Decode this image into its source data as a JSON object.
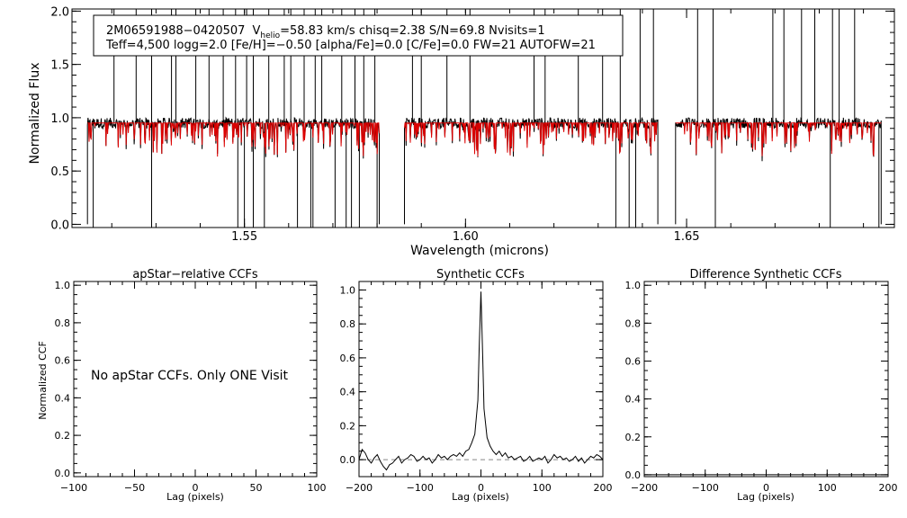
{
  "chart_data": [
    {
      "type": "line",
      "header": {
        "line1_id": "2M06591988−0420507",
        "line1_v": "V",
        "line1_v_sub": "helio",
        "line1_rest": "=58.83 km/s  chisq=2.38  S/N=69.8  Nvisits=1",
        "line2": "Teff=4,500 logg=2.0 [Fe/H]=−0.50 [alpha/Fe]=0.0 [C/Fe]=0.0 FW=21 AUTOFW=21"
      },
      "xlabel": "Wavelength (microns)",
      "ylabel": "Normalized Flux",
      "xlim": [
        1.511,
        1.697
      ],
      "ylim": [
        -0.03,
        2.02
      ],
      "xticks": [
        "1.55",
        "1.60",
        "1.65"
      ],
      "xtick_values": [
        1.55,
        1.6,
        1.65
      ],
      "yticks": [
        "0.0",
        "0.5",
        "1.0",
        "1.5",
        "2.0"
      ],
      "ytick_values": [
        0.0,
        0.5,
        1.0,
        1.5,
        2.0
      ],
      "chips": [
        [
          1.5145,
          1.5805
        ],
        [
          1.5862,
          1.6435
        ],
        [
          1.6475,
          1.694
        ]
      ],
      "series": [
        {
          "role": "observed",
          "color": "#000000",
          "continuum": 0.95
        },
        {
          "role": "model",
          "color": "#dd0000",
          "continuum": 0.95
        }
      ],
      "spikes_up": [
        1.5205,
        1.5255,
        1.529,
        1.5335,
        1.5345,
        1.539,
        1.542,
        1.5452,
        1.548,
        1.5505,
        1.552,
        1.5555,
        1.559,
        1.5605,
        1.5635,
        1.566,
        1.5675,
        1.572,
        1.575,
        1.577,
        1.5795,
        1.588,
        1.59,
        1.5958,
        1.601,
        1.6155,
        1.618,
        1.6255,
        1.631,
        1.635,
        1.6395,
        1.6425,
        1.6525,
        1.656,
        1.6695,
        1.672,
        1.676,
        1.679,
        1.683,
        1.6845,
        1.688
      ],
      "spikes_down": [
        1.5158,
        1.529,
        1.5485,
        1.55,
        1.552,
        1.5545,
        1.562,
        1.565,
        1.5655,
        1.5705,
        1.573,
        1.5742,
        1.576,
        1.58,
        1.634,
        1.637,
        1.6385,
        1.6565,
        1.6825,
        1.6935
      ]
    },
    {
      "type": "line",
      "title": "apStar−relative CCFs",
      "ylabel": "Normalized CCF",
      "xlabel": "Lag (pixels)",
      "xlim": [
        -100,
        100
      ],
      "ylim": [
        -0.02,
        1.02
      ],
      "xticks": [
        "−100",
        "−50",
        "0",
        "50",
        "100"
      ],
      "xtick_values": [
        -100,
        -50,
        0,
        50,
        100
      ],
      "yticks": [
        "0.0",
        "0.2",
        "0.4",
        "0.6",
        "0.8",
        "1.0"
      ],
      "ytick_values": [
        0.0,
        0.2,
        0.4,
        0.6,
        0.8,
        1.0
      ],
      "note": "No apStar CCFs.  Only ONE Visit"
    },
    {
      "type": "line",
      "title": "Synthetic CCFs",
      "xlabel": "Lag (pixels)",
      "xlim": [
        -200,
        200
      ],
      "ylim": [
        -0.1,
        1.05
      ],
      "xticks": [
        "−200",
        "−100",
        "0",
        "100",
        "200"
      ],
      "xtick_values": [
        -200,
        -100,
        0,
        100,
        200
      ],
      "yticks": [
        "0.0",
        "0.2",
        "0.4",
        "0.6",
        "0.8",
        "1.0"
      ],
      "ytick_values": [
        0.0,
        0.2,
        0.4,
        0.6,
        0.8,
        1.0
      ],
      "baseline": 0.0,
      "series": [
        {
          "color": "#000000",
          "x": [
            -200,
            -195,
            -190,
            -185,
            -180,
            -175,
            -170,
            -165,
            -160,
            -155,
            -150,
            -145,
            -140,
            -135,
            -130,
            -125,
            -120,
            -115,
            -110,
            -105,
            -100,
            -95,
            -90,
            -85,
            -80,
            -75,
            -70,
            -65,
            -60,
            -55,
            -50,
            -45,
            -40,
            -35,
            -30,
            -25,
            -20,
            -15,
            -10,
            -5,
            -3,
            0,
            3,
            5,
            10,
            15,
            20,
            25,
            30,
            35,
            40,
            45,
            50,
            55,
            60,
            65,
            70,
            75,
            80,
            85,
            90,
            95,
            100,
            105,
            110,
            115,
            120,
            125,
            130,
            135,
            140,
            145,
            150,
            155,
            160,
            165,
            170,
            175,
            180,
            185,
            190,
            195,
            200
          ],
          "y": [
            0.0,
            0.06,
            0.04,
            0.0,
            -0.02,
            0.01,
            0.03,
            -0.01,
            -0.04,
            -0.06,
            -0.03,
            -0.02,
            0.0,
            0.02,
            -0.02,
            0.0,
            0.01,
            0.03,
            0.02,
            -0.01,
            0.0,
            0.02,
            0.0,
            0.01,
            -0.02,
            0.0,
            0.03,
            0.01,
            0.02,
            0.0,
            0.02,
            0.03,
            0.02,
            0.04,
            0.02,
            0.05,
            0.06,
            0.1,
            0.15,
            0.35,
            0.65,
            0.99,
            0.6,
            0.3,
            0.13,
            0.08,
            0.05,
            0.03,
            0.05,
            0.02,
            0.04,
            0.01,
            0.02,
            0.0,
            0.01,
            0.02,
            -0.01,
            0.0,
            0.02,
            -0.01,
            0.0,
            0.01,
            0.0,
            0.02,
            -0.02,
            0.0,
            0.03,
            0.01,
            0.02,
            0.0,
            0.01,
            -0.01,
            0.0,
            0.02,
            -0.01,
            0.01,
            -0.02,
            0.0,
            0.02,
            0.01,
            0.03,
            0.02,
            0.0
          ]
        }
      ]
    },
    {
      "type": "line",
      "title": "Difference Synthetic CCFs",
      "xlabel": "Lag (pixels)",
      "xlim": [
        -200,
        200
      ],
      "ylim": [
        -0.01,
        1.02
      ],
      "xticks": [
        "−200",
        "−100",
        "0",
        "100",
        "200"
      ],
      "xtick_values": [
        -200,
        -100,
        0,
        100,
        200
      ],
      "yticks": [
        "0.0",
        "0.2",
        "0.4",
        "0.6",
        "0.8",
        "1.0"
      ],
      "ytick_values": [
        0.0,
        0.2,
        0.4,
        0.6,
        0.8,
        1.0
      ],
      "series": [
        {
          "color": "#000000",
          "x": [
            -200,
            200
          ],
          "y": [
            0.0,
            0.0
          ]
        }
      ]
    }
  ]
}
